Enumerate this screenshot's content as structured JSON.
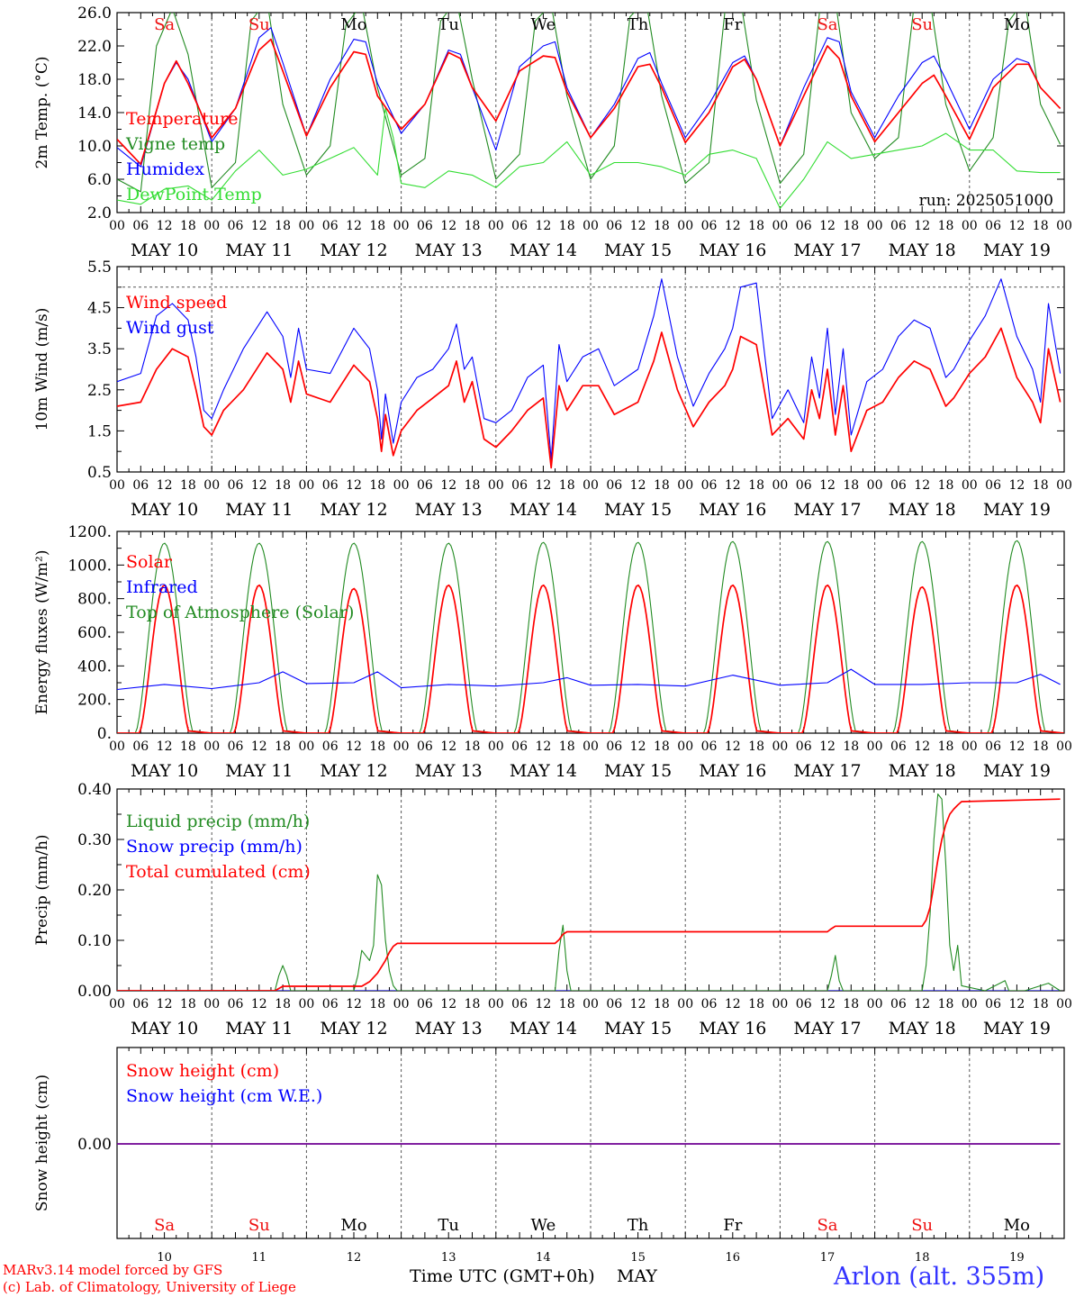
{
  "figure": {
    "run_label": "run: 2025051000",
    "x_tick_hours": [
      "00",
      "06",
      "12",
      "18"
    ],
    "day_labels": [
      "MAY 10",
      "MAY 11",
      "MAY 12",
      "MAY 13",
      "MAY 14",
      "MAY 15",
      "MAY 16",
      "MAY 17",
      "MAY 18",
      "MAY 19"
    ],
    "weekdays": [
      "Sa",
      "Su",
      "Mo",
      "Tu",
      "We",
      "Th",
      "Fr",
      "Sa",
      "Su",
      "Mo"
    ],
    "weekend_color": "#ee1111",
    "weekday_color": "#000000",
    "bottom_day_numbers": [
      "10",
      "11",
      "12",
      "13",
      "14",
      "15",
      "16",
      "17",
      "18",
      "19"
    ],
    "bottom_month": "MAY",
    "xlabel": "Time UTC (GMT+0h)",
    "footer_model": "MARv3.14 model forced by GFS",
    "footer_copyright": "(c) Lab. of Climatology, University of Liege",
    "station": "Arlon (alt. 355m)"
  },
  "chart_data": [
    {
      "type": "line",
      "ylabel": "2m Temp. (°C)",
      "ylim": [
        2,
        26
      ],
      "yticks": [
        "2.0",
        "6.0",
        "10.0",
        "14.0",
        "18.0",
        "22.0",
        "26.0"
      ],
      "x_unit": "hours from 2025-05-10 00 UTC",
      "series": [
        {
          "name": "Temperature",
          "color": "#ff0000",
          "x": [
            0,
            6,
            12,
            15,
            18,
            24,
            30,
            36,
            39,
            42,
            48,
            54,
            60,
            63,
            66,
            72,
            78,
            84,
            87,
            90,
            96,
            102,
            108,
            111,
            114,
            120,
            126,
            132,
            135,
            138,
            144,
            150,
            156,
            159,
            162,
            168,
            174,
            180,
            183,
            186,
            192,
            198,
            204,
            207,
            210,
            216,
            222,
            228,
            231,
            234,
            239
          ],
          "y": [
            10.8,
            7.8,
            17.5,
            20.2,
            17.5,
            11.0,
            14.5,
            21.5,
            22.8,
            19.0,
            11.2,
            17.0,
            21.3,
            21.0,
            16.0,
            12.0,
            15.0,
            21.2,
            20.5,
            17.0,
            13.0,
            19.0,
            20.8,
            20.6,
            16.5,
            11.0,
            14.5,
            19.5,
            19.8,
            17.0,
            10.4,
            14.0,
            19.5,
            20.4,
            18.0,
            10.0,
            16.0,
            22.0,
            20.5,
            16.0,
            10.5,
            14.0,
            17.5,
            18.5,
            16.0,
            10.8,
            17.0,
            19.8,
            19.8,
            17.0,
            14.5
          ]
        },
        {
          "name": "Vigne temp",
          "color": "#228b22",
          "x": [
            0,
            6,
            10,
            14,
            18,
            24,
            30,
            34,
            38,
            42,
            48,
            54,
            58,
            62,
            66,
            72,
            78,
            82,
            86,
            90,
            96,
            102,
            106,
            110,
            114,
            120,
            126,
            130,
            134,
            138,
            144,
            150,
            154,
            158,
            162,
            168,
            174,
            178,
            182,
            186,
            192,
            198,
            202,
            206,
            210,
            216,
            222,
            226,
            230,
            234,
            239
          ],
          "y": [
            6.0,
            4.5,
            22.0,
            26.5,
            21.0,
            5.0,
            8.0,
            25.0,
            27.5,
            15.0,
            6.5,
            10.0,
            24.5,
            27.0,
            17.0,
            6.5,
            8.5,
            25.0,
            27.5,
            18.0,
            6.0,
            9.0,
            25.0,
            27.0,
            16.0,
            6.0,
            10.0,
            25.5,
            27.5,
            16.0,
            5.5,
            8.0,
            26.0,
            27.5,
            15.5,
            5.5,
            9.0,
            26.0,
            27.5,
            14.0,
            8.5,
            11.0,
            27.0,
            27.5,
            15.0,
            7.0,
            11.0,
            25.0,
            27.5,
            15.0,
            10.2
          ]
        },
        {
          "name": "Humidex",
          "color": "#0000ff",
          "x": [
            0,
            6,
            12,
            15,
            18,
            24,
            30,
            36,
            39,
            42,
            48,
            54,
            60,
            63,
            66,
            72,
            78,
            84,
            87,
            90,
            96,
            102,
            108,
            111,
            114,
            120,
            126,
            132,
            135,
            138,
            144,
            150,
            156,
            159,
            162,
            168,
            174,
            180,
            183,
            186,
            192,
            198,
            204,
            207,
            210,
            216,
            222,
            228,
            231,
            234,
            239
          ],
          "y": [
            9.8,
            7.5,
            17.5,
            20.0,
            18.0,
            10.5,
            14.5,
            23.0,
            24.2,
            20.0,
            11.2,
            18.0,
            22.8,
            22.5,
            17.5,
            11.5,
            15.0,
            21.5,
            21.0,
            17.0,
            9.5,
            19.5,
            22.0,
            22.5,
            17.0,
            11.0,
            15.0,
            20.5,
            21.2,
            17.5,
            11.0,
            15.0,
            20.0,
            20.8,
            18.0,
            10.0,
            17.0,
            23.0,
            22.5,
            16.5,
            11.0,
            16.0,
            20.0,
            20.8,
            18.0,
            12.0,
            18.0,
            20.5,
            20.0,
            17.0,
            14.5
          ]
        },
        {
          "name": "DewPoint Temp",
          "color": "#33dd33",
          "x": [
            0,
            6,
            12,
            18,
            24,
            30,
            36,
            42,
            48,
            54,
            60,
            66,
            68,
            70,
            72,
            78,
            84,
            90,
            96,
            102,
            108,
            114,
            120,
            126,
            132,
            138,
            144,
            150,
            156,
            162,
            168,
            174,
            180,
            186,
            192,
            198,
            204,
            210,
            216,
            222,
            228,
            234,
            239
          ],
          "y": [
            3.5,
            3.0,
            4.8,
            5.2,
            3.5,
            7.0,
            9.5,
            6.5,
            7.2,
            8.5,
            9.8,
            6.5,
            14.5,
            11.0,
            5.5,
            5.0,
            7.0,
            6.5,
            5.0,
            7.5,
            8.0,
            10.5,
            6.5,
            8.0,
            8.0,
            7.5,
            6.5,
            9.0,
            9.5,
            8.5,
            2.5,
            6.0,
            10.5,
            8.5,
            9.0,
            9.5,
            10.0,
            11.5,
            9.5,
            9.5,
            7.0,
            6.8,
            6.8
          ]
        }
      ]
    },
    {
      "type": "line",
      "ylabel": "10m Wind (m/s)",
      "ylim": [
        0.5,
        5.5
      ],
      "yticks": [
        "0.5",
        "1.5",
        "2.5",
        "3.5",
        "4.5",
        "5.5"
      ],
      "ref_line": 5.0,
      "series": [
        {
          "name": "Wind speed",
          "color": "#ff0000",
          "x": [
            0,
            6,
            10,
            14,
            18,
            20,
            22,
            24,
            27,
            32,
            38,
            42,
            44,
            46,
            48,
            54,
            60,
            64,
            66,
            67,
            68,
            70,
            72,
            76,
            80,
            84,
            86,
            88,
            90,
            93,
            96,
            100,
            104,
            108,
            110,
            112,
            114,
            118,
            122,
            126,
            132,
            136,
            138,
            142,
            146,
            150,
            154,
            156,
            158,
            162,
            166,
            170,
            174,
            176,
            178,
            180,
            182,
            184,
            186,
            190,
            194,
            198,
            202,
            206,
            210,
            212,
            216,
            220,
            224,
            228,
            232,
            234,
            236,
            239
          ],
          "y": [
            2.1,
            2.2,
            3.0,
            3.5,
            3.3,
            2.5,
            1.6,
            1.4,
            2.0,
            2.5,
            3.4,
            3.0,
            2.2,
            3.2,
            2.4,
            2.2,
            3.1,
            2.7,
            1.8,
            1.0,
            1.9,
            0.9,
            1.5,
            2.0,
            2.3,
            2.6,
            3.2,
            2.2,
            2.7,
            1.3,
            1.1,
            1.5,
            2.0,
            2.3,
            0.6,
            2.6,
            2.0,
            2.6,
            2.6,
            1.9,
            2.2,
            3.2,
            3.9,
            2.5,
            1.6,
            2.2,
            2.6,
            3.0,
            3.8,
            3.6,
            1.4,
            1.8,
            1.3,
            2.5,
            1.8,
            3.0,
            1.4,
            2.6,
            1.0,
            2.0,
            2.2,
            2.8,
            3.2,
            3.0,
            2.1,
            2.3,
            2.9,
            3.3,
            4.0,
            2.8,
            2.2,
            1.7,
            3.5,
            2.2
          ]
        },
        {
          "name": "Wind gust",
          "color": "#0000ff",
          "x": [
            0,
            6,
            10,
            14,
            18,
            20,
            22,
            24,
            27,
            32,
            38,
            42,
            44,
            46,
            48,
            54,
            60,
            64,
            66,
            67,
            68,
            70,
            72,
            76,
            80,
            84,
            86,
            88,
            90,
            93,
            96,
            100,
            104,
            108,
            110,
            112,
            114,
            118,
            122,
            126,
            132,
            136,
            138,
            142,
            146,
            150,
            154,
            156,
            158,
            162,
            166,
            170,
            174,
            176,
            178,
            180,
            182,
            184,
            186,
            190,
            194,
            198,
            202,
            206,
            210,
            212,
            216,
            220,
            224,
            228,
            232,
            234,
            236,
            239
          ],
          "y": [
            2.7,
            2.9,
            4.3,
            4.6,
            4.2,
            3.3,
            2.0,
            1.8,
            2.5,
            3.5,
            4.4,
            3.8,
            2.8,
            4.0,
            3.0,
            2.9,
            4.0,
            3.5,
            2.5,
            1.3,
            2.4,
            1.2,
            2.2,
            2.8,
            3.0,
            3.5,
            4.1,
            3.0,
            3.3,
            1.8,
            1.7,
            2.0,
            2.8,
            3.1,
            0.8,
            3.6,
            2.7,
            3.3,
            3.5,
            2.6,
            3.0,
            4.3,
            5.2,
            3.3,
            2.1,
            2.9,
            3.5,
            4.0,
            5.0,
            5.1,
            1.8,
            2.5,
            1.7,
            3.3,
            2.3,
            4.0,
            1.9,
            3.5,
            1.4,
            2.7,
            3.0,
            3.8,
            4.2,
            4.0,
            2.8,
            3.0,
            3.7,
            4.3,
            5.2,
            3.8,
            3.0,
            2.2,
            4.6,
            2.9
          ]
        }
      ]
    },
    {
      "type": "line",
      "ylabel": "Energy fluxes (W/m²)",
      "ylim": [
        0,
        1200
      ],
      "yticks": [
        "0.",
        "200.",
        "400.",
        "600.",
        "800.",
        "1000.",
        "1200."
      ],
      "series": [
        {
          "name": "Solar",
          "color": "#ff0000",
          "peaks": [
            880,
            880,
            860,
            880,
            880,
            880,
            880,
            880,
            870,
            880
          ]
        },
        {
          "name": "Infrared",
          "color": "#0000ff",
          "x": [
            0,
            12,
            24,
            36,
            42,
            48,
            60,
            66,
            72,
            84,
            96,
            108,
            114,
            120,
            132,
            144,
            156,
            168,
            180,
            186,
            192,
            204,
            216,
            228,
            234,
            239
          ],
          "y": [
            260,
            290,
            265,
            300,
            365,
            295,
            300,
            365,
            270,
            290,
            280,
            300,
            330,
            285,
            290,
            280,
            345,
            285,
            300,
            380,
            290,
            290,
            300,
            300,
            350,
            290
          ]
        },
        {
          "name": "Top of Atmosphere (Solar)",
          "color": "#228b22",
          "peaks": [
            1130,
            1130,
            1130,
            1130,
            1135,
            1135,
            1140,
            1140,
            1140,
            1145
          ]
        }
      ]
    },
    {
      "type": "line",
      "ylabel": "Precip (mm/h)",
      "ylim": [
        0,
        0.4
      ],
      "yticks": [
        "0.00",
        "0.10",
        "0.20",
        "0.30",
        "0.40"
      ],
      "series": [
        {
          "name": "Liquid precip (mm/h)",
          "color": "#228b22",
          "x": [
            0,
            40,
            41,
            42,
            43,
            44,
            60,
            61,
            62,
            63,
            64,
            65,
            66,
            67,
            68,
            69,
            70,
            71,
            111,
            112,
            113,
            114,
            115,
            180,
            181,
            182,
            183,
            184,
            204,
            205,
            206,
            207,
            208,
            209,
            210,
            211,
            212,
            213,
            214,
            220,
            225,
            226,
            230,
            236,
            239
          ],
          "y": [
            0,
            0,
            0.03,
            0.05,
            0.03,
            0,
            0,
            0.03,
            0.08,
            0.07,
            0.06,
            0.09,
            0.23,
            0.21,
            0.1,
            0.04,
            0.01,
            0,
            0,
            0.08,
            0.13,
            0.04,
            0,
            0,
            0.03,
            0.07,
            0.02,
            0,
            0,
            0.05,
            0.15,
            0.3,
            0.39,
            0.38,
            0.25,
            0.09,
            0.04,
            0.09,
            0.01,
            0,
            0.02,
            0,
            0,
            0.015,
            0
          ]
        },
        {
          "name": "Snow precip (mm/h)",
          "color": "#0000ff",
          "x": [
            0,
            239
          ],
          "y": [
            0,
            0
          ]
        },
        {
          "name": "Total cumulated (cm)",
          "color": "#ff0000",
          "x": [
            0,
            40,
            42,
            62,
            64,
            66,
            68,
            69,
            70,
            71,
            111,
            112,
            113,
            114,
            180,
            181,
            182,
            204,
            205,
            206,
            207,
            208,
            209,
            210,
            211,
            212,
            213,
            214,
            239
          ],
          "y": [
            0,
            0,
            0.009,
            0.009,
            0.018,
            0.035,
            0.06,
            0.076,
            0.088,
            0.094,
            0.094,
            0.101,
            0.112,
            0.117,
            0.117,
            0.123,
            0.128,
            0.128,
            0.14,
            0.165,
            0.21,
            0.26,
            0.3,
            0.33,
            0.35,
            0.36,
            0.368,
            0.375,
            0.38
          ]
        }
      ]
    },
    {
      "type": "line",
      "ylabel": "Snow height (cm)",
      "yticks": [
        "0.00"
      ],
      "series": [
        {
          "name": "Snow height (cm)",
          "color": "#ff0000",
          "x": [
            0,
            239
          ],
          "y": [
            0,
            0
          ]
        },
        {
          "name": "Snow height (cm W.E.)",
          "color": "#0000ff",
          "x": [
            0,
            239
          ],
          "y": [
            0,
            0
          ]
        }
      ]
    }
  ]
}
